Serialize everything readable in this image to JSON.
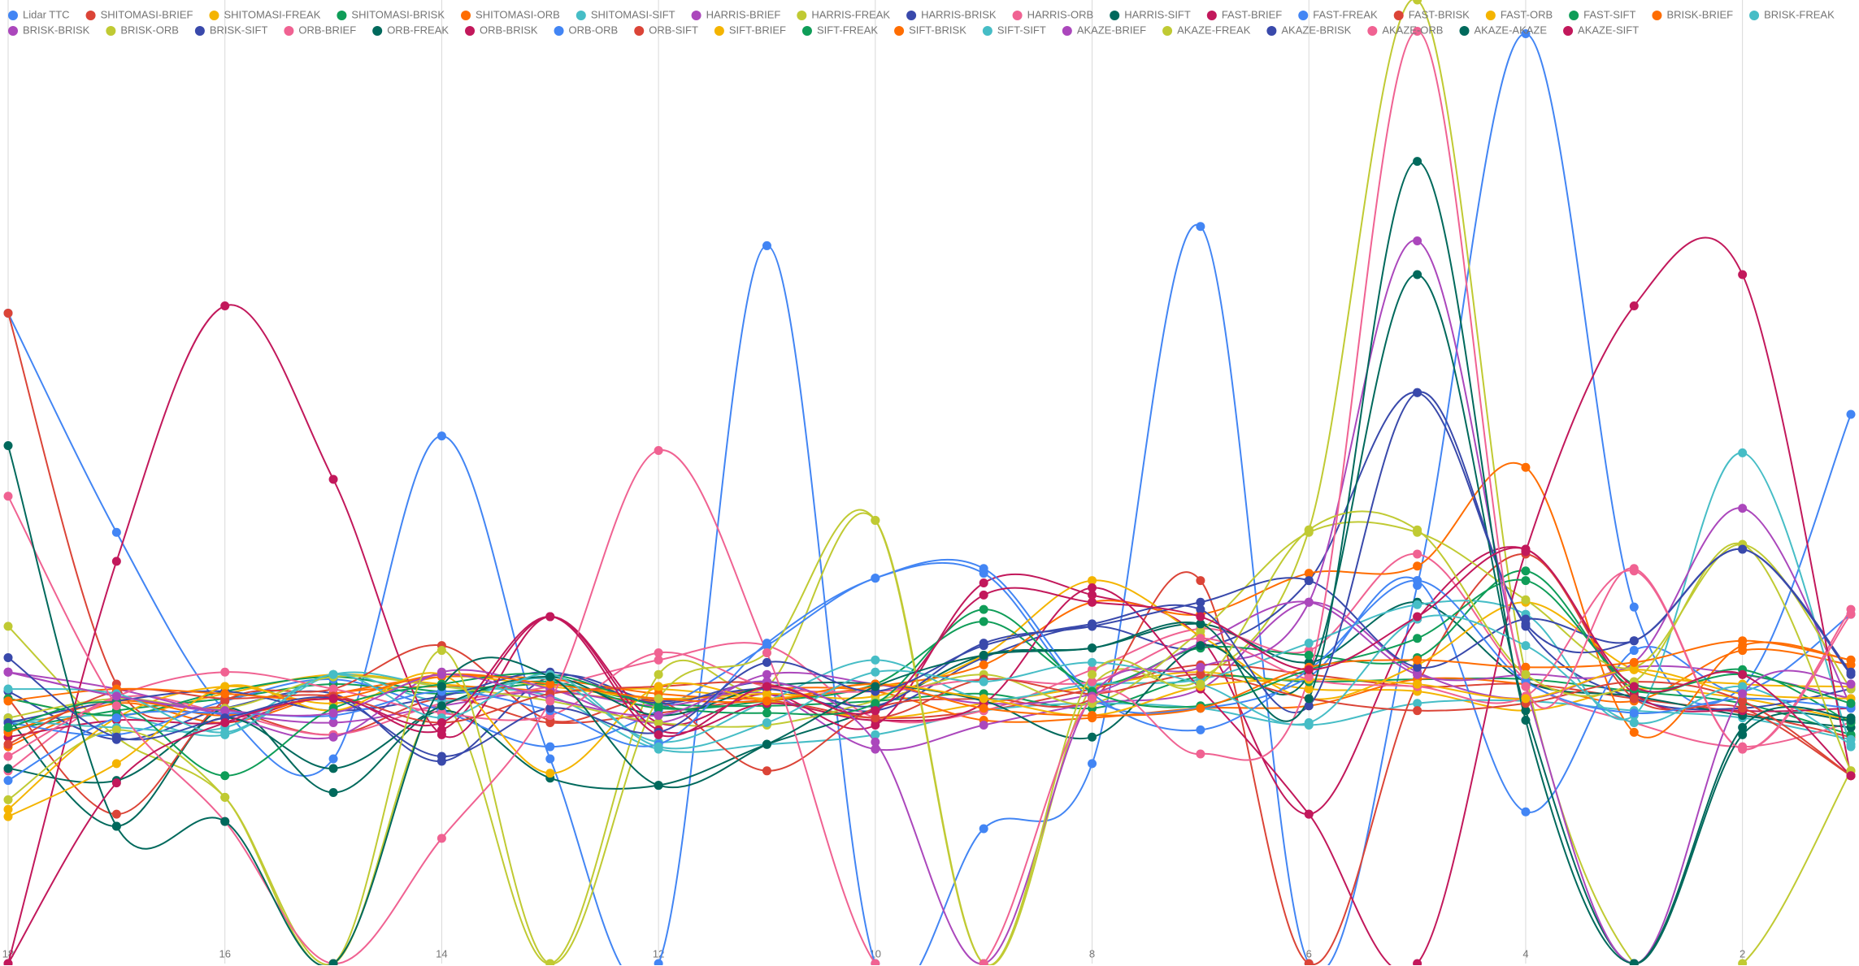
{
  "chart_data": {
    "type": "line",
    "smooth": true,
    "grid": true,
    "categories": [
      "18",
      null,
      "16",
      null,
      "14",
      null,
      "12",
      null,
      "10",
      null,
      "8",
      null,
      "6",
      null,
      "4",
      null,
      "2",
      null
    ],
    "ylim": [
      0,
      40
    ],
    "series": [
      {
        "name": "Lidar TTC",
        "color": "#4285f4",
        "values": [
          27.0,
          17.9,
          10.5,
          8.5,
          21.9,
          8.5,
          0,
          29.8,
          0,
          5.6,
          8.3,
          30.6,
          0,
          15.7,
          38.6,
          14.8,
          11.5,
          22.8
        ]
      },
      {
        "name": "SHITOMASI-BRIEF",
        "color": "#db4437",
        "values": [
          27.0,
          11.6,
          10.6,
          9.5,
          11,
          10,
          10.4,
          10.9,
          10.2,
          10.5,
          11.4,
          12.4,
          12,
          11.5,
          11.6,
          11,
          10.4,
          9.4
        ]
      },
      {
        "name": "SHITOMASI-FREAK",
        "color": "#f4b400",
        "values": [
          11,
          10.3,
          11.2,
          12,
          11.6,
          11.3,
          11.4,
          10.9,
          10.2,
          10.8,
          11.5,
          12.1,
          11.4,
          11.3,
          10.5,
          11.4,
          11,
          10.1
        ]
      },
      {
        "name": "SHITOMASI-BRISK",
        "color": "#0f9d58",
        "values": [
          9.7,
          10.5,
          11,
          11.6,
          11.2,
          11.6,
          10.8,
          10.7,
          10.9,
          11.2,
          10.6,
          11.9,
          11.7,
          11.8,
          11.8,
          11.3,
          10.8,
          9.5
        ]
      },
      {
        "name": "SHITOMASI-ORB",
        "color": "#ff6d01",
        "values": [
          9,
          10.8,
          10,
          11.2,
          11.5,
          11.3,
          10.9,
          11.4,
          11.3,
          10.1,
          10.2,
          10.6,
          10.7,
          11.8,
          11.6,
          10.9,
          13,
          12.4
        ]
      },
      {
        "name": "SHITOMASI-SIFT",
        "color": "#46bdc6",
        "values": [
          10,
          10.3,
          9.5,
          12,
          11.5,
          11.1,
          8.9,
          9.1,
          9.5,
          10.5,
          10.8,
          10.6,
          9.9,
          10.8,
          10.9,
          10.5,
          10.2,
          9.3
        ]
      },
      {
        "name": "HARRIS-BRIEF",
        "color": "#ab47bc",
        "values": [
          12.1,
          11.1,
          10.4,
          10,
          10.7,
          11.3,
          10.7,
          11.2,
          8.9,
          9.9,
          10.8,
          11.4,
          15,
          12.1,
          11,
          12.3,
          12,
          11
        ]
      },
      {
        "name": "HARRIS-FREAK",
        "color": "#c0ca33",
        "values": [
          14,
          9.4,
          6.9,
          0,
          10.7,
          0,
          12,
          11.5,
          18.4,
          0,
          11.5,
          11.8,
          18,
          40,
          12,
          0,
          0,
          8
        ]
      },
      {
        "name": "HARRIS-BRISK",
        "color": "#3949ab",
        "values": [
          11.3,
          9.3,
          10.6,
          11.2,
          8.4,
          11.9,
          10.9,
          11.4,
          10.5,
          12.7,
          14,
          13.1,
          15.9,
          23.7,
          14,
          11,
          10.6,
          11.4
        ]
      },
      {
        "name": "HARRIS-ORB",
        "color": "#f06292",
        "values": [
          8,
          11,
          10.4,
          9.5,
          10.8,
          11.5,
          12.6,
          13.2,
          10.2,
          10.5,
          12.2,
          13.9,
          13,
          17,
          11.8,
          10,
          9,
          10
        ]
      },
      {
        "name": "HARRIS-SIFT",
        "color": "#00695c",
        "values": [
          10.2,
          5.7,
          10.6,
          7.1,
          10.5,
          7.7,
          7.4,
          9.1,
          10.6,
          12.8,
          13.1,
          14.1,
          12.5,
          15,
          11.7,
          11.1,
          10.3,
          9.8
        ]
      },
      {
        "name": "FAST-BRIEF",
        "color": "#c2185b",
        "values": [
          9.4,
          10.1,
          10,
          11.1,
          9.7,
          14.4,
          10,
          11.2,
          9.9,
          15.8,
          15.3,
          13.5,
          6.2,
          14.3,
          17.2,
          11.2,
          10.5,
          10.6
        ]
      },
      {
        "name": "FAST-FREAK",
        "color": "#4285f4",
        "values": [
          10,
          9.5,
          10.9,
          11.8,
          10.5,
          9,
          10.5,
          13.2,
          16,
          16.2,
          11,
          10.6,
          11.9,
          15.9,
          6.3,
          13,
          11.3,
          14.5
        ]
      },
      {
        "name": "FAST-BRISK",
        "color": "#db4437",
        "values": [
          11,
          6.2,
          10.9,
          11.4,
          13.2,
          10.1,
          10.9,
          8,
          10.6,
          11,
          11,
          15.9,
          0,
          11.6,
          17,
          11,
          10.6,
          7.8
        ]
      },
      {
        "name": "FAST-ORB",
        "color": "#f4b400",
        "values": [
          6.4,
          10.2,
          11.5,
          10.8,
          11.9,
          11.5,
          11,
          11.2,
          11.1,
          12.8,
          15.9,
          13.6,
          11,
          12.4,
          15,
          12.2,
          11.6,
          11.5
        ]
      },
      {
        "name": "FAST-SIFT",
        "color": "#0f9d58",
        "values": [
          11,
          10.3,
          11.3,
          11.9,
          11.3,
          11.7,
          10.6,
          10.9,
          11.6,
          14.2,
          11.6,
          13.1,
          12.8,
          12.7,
          16.3,
          11.4,
          12.2,
          10
        ]
      },
      {
        "name": "BRISK-BRIEF",
        "color": "#ff6d01",
        "values": [
          9.6,
          10.9,
          10.3,
          11.2,
          11.9,
          11.8,
          11.2,
          11,
          11.5,
          12.4,
          15,
          14.5,
          16.2,
          16.5,
          20.6,
          9.6,
          13.2,
          12.6
        ]
      },
      {
        "name": "BRISK-FREAK",
        "color": "#46bdc6",
        "values": [
          10.1,
          9.8,
          9.8,
          12,
          10.9,
          11.8,
          9.2,
          10.9,
          12.6,
          11,
          11.6,
          11.8,
          13.3,
          14.9,
          14.5,
          10.3,
          21.2,
          9
        ]
      },
      {
        "name": "BRISK-BRISK",
        "color": "#ab47bc",
        "values": [
          12.1,
          11.4,
          10.3,
          9.4,
          12.1,
          11.4,
          10,
          12,
          11.6,
          10.8,
          11.2,
          13.3,
          15,
          12,
          12,
          12.5,
          18.9,
          10.7
        ]
      },
      {
        "name": "BRISK-ORB",
        "color": "#c0ca33",
        "values": [
          10.2,
          11,
          10.6,
          11.9,
          11.5,
          10.9,
          10,
          9.9,
          10.9,
          12,
          10.8,
          13.8,
          17.9,
          17.9,
          15.1,
          12.3,
          17.4,
          11.4
        ]
      },
      {
        "name": "BRISK-SIFT",
        "color": "#3949ab",
        "values": [
          10,
          10.9,
          11.3,
          10.5,
          11.1,
          12.1,
          10.8,
          11.7,
          10.7,
          13.3,
          14,
          15,
          15.9,
          12.3,
          14.3,
          13.4,
          17.2,
          12.1
        ]
      },
      {
        "name": "ORB-BRIEF",
        "color": "#f06292",
        "values": [
          8.6,
          11.1,
          12.1,
          11.4,
          10.4,
          10.3,
          12.9,
          11.5,
          11.3,
          11.8,
          11.7,
          13.5,
          11.8,
          11.5,
          11.1,
          16.3,
          8.9,
          14.7
        ]
      },
      {
        "name": "ORB-FREAK",
        "color": "#00695c",
        "values": [
          8.1,
          7.6,
          10.2,
          8.1,
          10.7,
          11.9,
          10.3,
          11.5,
          11.6,
          10.9,
          9.4,
          13.2,
          12,
          28.6,
          10.5,
          0,
          9.5,
          10.1
        ]
      },
      {
        "name": "ORB-BRISK",
        "color": "#c2185b",
        "values": [
          0,
          16.7,
          27.3,
          20.1,
          9.5,
          14.4,
          9.7,
          10.8,
          10.1,
          10.8,
          15.6,
          11.4,
          6.2,
          0,
          17.1,
          27.3,
          28.6,
          7.8
        ]
      },
      {
        "name": "ORB-ORB",
        "color": "#4285f4",
        "values": [
          7.6,
          10.2,
          10.4,
          10.3,
          11.3,
          10.5,
          9.1,
          13.3,
          16,
          16.4,
          11.2,
          9.7,
          12.2,
          15.9,
          11.7,
          10.4,
          11,
          10.6
        ]
      },
      {
        "name": "ORB-SIFT",
        "color": "#db4437",
        "values": [
          9.1,
          11.3,
          11,
          11.1,
          10,
          11.2,
          11.5,
          11.6,
          10.2,
          11.8,
          11.2,
          12,
          11,
          10.5,
          10.8,
          11.7,
          10.9,
          7.8
        ]
      },
      {
        "name": "SIFT-BRIEF",
        "color": "#f4b400",
        "values": [
          6.1,
          8.3,
          11.5,
          10.5,
          12,
          7.9,
          11.5,
          11,
          11.6,
          11,
          10.3,
          11.5,
          11.8,
          11.6,
          11,
          12.2,
          11.2,
          11
        ]
      },
      {
        "name": "SIFT-FREAK",
        "color": "#0f9d58",
        "values": [
          9.8,
          10.8,
          7.8,
          10.6,
          11.6,
          12,
          10.7,
          10.4,
          10.8,
          14.7,
          11.3,
          10.7,
          12.2,
          13.5,
          15.9,
          11.6,
          12,
          10.8
        ]
      },
      {
        "name": "SIFT-BRISK",
        "color": "#ff6d01",
        "values": [
          10.9,
          11.4,
          11.2,
          11,
          12,
          11.6,
          11,
          10.9,
          11.6,
          10.6,
          10.3,
          10.6,
          12.3,
          12.6,
          12.3,
          12.5,
          13.4,
          12.6
        ]
      },
      {
        "name": "SIFT-SIFT",
        "color": "#46bdc6",
        "values": [
          11.4,
          11.2,
          9.6,
          12,
          10.2,
          12,
          9,
          10,
          12.1,
          11.7,
          12.5,
          11.6,
          10,
          14.3,
          13.2,
          10,
          11.5,
          9.1
        ]
      },
      {
        "name": "AKAZE-BRIEF",
        "color": "#ab47bc",
        "values": [
          12.1,
          11.1,
          10.5,
          10.4,
          12,
          11,
          10.3,
          11.7,
          9.2,
          0,
          11.1,
          12.3,
          15,
          30,
          11.5,
          0,
          11.2,
          11.6
        ]
      },
      {
        "name": "AKAZE-FREAK",
        "color": "#c0ca33",
        "values": [
          6.8,
          9.7,
          6.9,
          0,
          13,
          0,
          11,
          12.9,
          18.4,
          0,
          12,
          11.6,
          18,
          18,
          12,
          11.7,
          17.4,
          8
        ]
      },
      {
        "name": "AKAZE-BRISK",
        "color": "#3949ab",
        "values": [
          12.7,
          9.4,
          10.2,
          11,
          8.6,
          10.6,
          9.6,
          12.5,
          11.3,
          13.2,
          14.1,
          14.7,
          10.7,
          23.7,
          14.1,
          13.4,
          17.2,
          12
        ]
      },
      {
        "name": "AKAZE-ORB",
        "color": "#f06292",
        "values": [
          19.4,
          10.7,
          5.9,
          0,
          5.2,
          10.9,
          21.3,
          12.9,
          0,
          0,
          11,
          8.7,
          11.9,
          38.7,
          11.5,
          16.4,
          8.9,
          14.5
        ]
      },
      {
        "name": "AKAZE-AKAZE",
        "color": "#00695c",
        "values": [
          21.5,
          5.7,
          5.9,
          0,
          11.5,
          11.9,
          7.4,
          9.1,
          11.5,
          12.8,
          13.1,
          14.1,
          11,
          33.3,
          10.1,
          0,
          9.8,
          10.2
        ]
      },
      {
        "name": "AKAZE-SIFT",
        "color": "#c2185b",
        "values": [
          0,
          7.5,
          10,
          11,
          10,
          14.4,
          9.5,
          11.5,
          10.5,
          15.3,
          15,
          14.4,
          12.2,
          14.4,
          17.2,
          11.5,
          12,
          7.8
        ]
      }
    ]
  }
}
